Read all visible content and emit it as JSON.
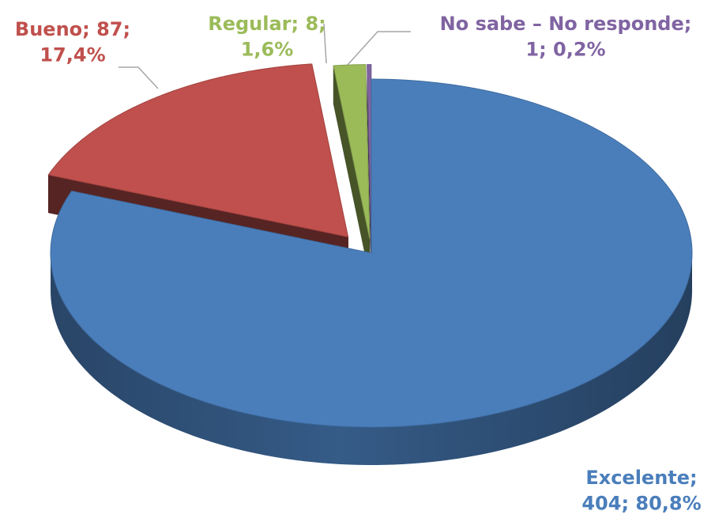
{
  "chart_data": {
    "type": "pie",
    "title": "",
    "categories": [
      "Excelente",
      "Bueno",
      "Regular",
      "No sabe – No responde"
    ],
    "values": [
      404,
      87,
      8,
      1
    ],
    "percentages": [
      80.8,
      17.4,
      1.6,
      0.2
    ],
    "colors": [
      "#4a7ebb",
      "#c0504d",
      "#9bbb59",
      "#8064a2"
    ],
    "legend": "none",
    "data_labels": [
      {
        "category": "Excelente",
        "lines": [
          "Excelente;",
          "404; 80,8%"
        ],
        "color": "#4a7ebb"
      },
      {
        "category": "Bueno",
        "lines": [
          "Bueno; 87;",
          "17,4%"
        ],
        "color": "#c0504d"
      },
      {
        "category": "Regular",
        "lines": [
          "Regular; 8;",
          "1,6%"
        ],
        "color": "#9bbb59"
      },
      {
        "category": "No sabe – No responde",
        "lines": [
          "No sabe – No responde;",
          "1; 0,2%"
        ],
        "color": "#8064a2"
      }
    ]
  }
}
